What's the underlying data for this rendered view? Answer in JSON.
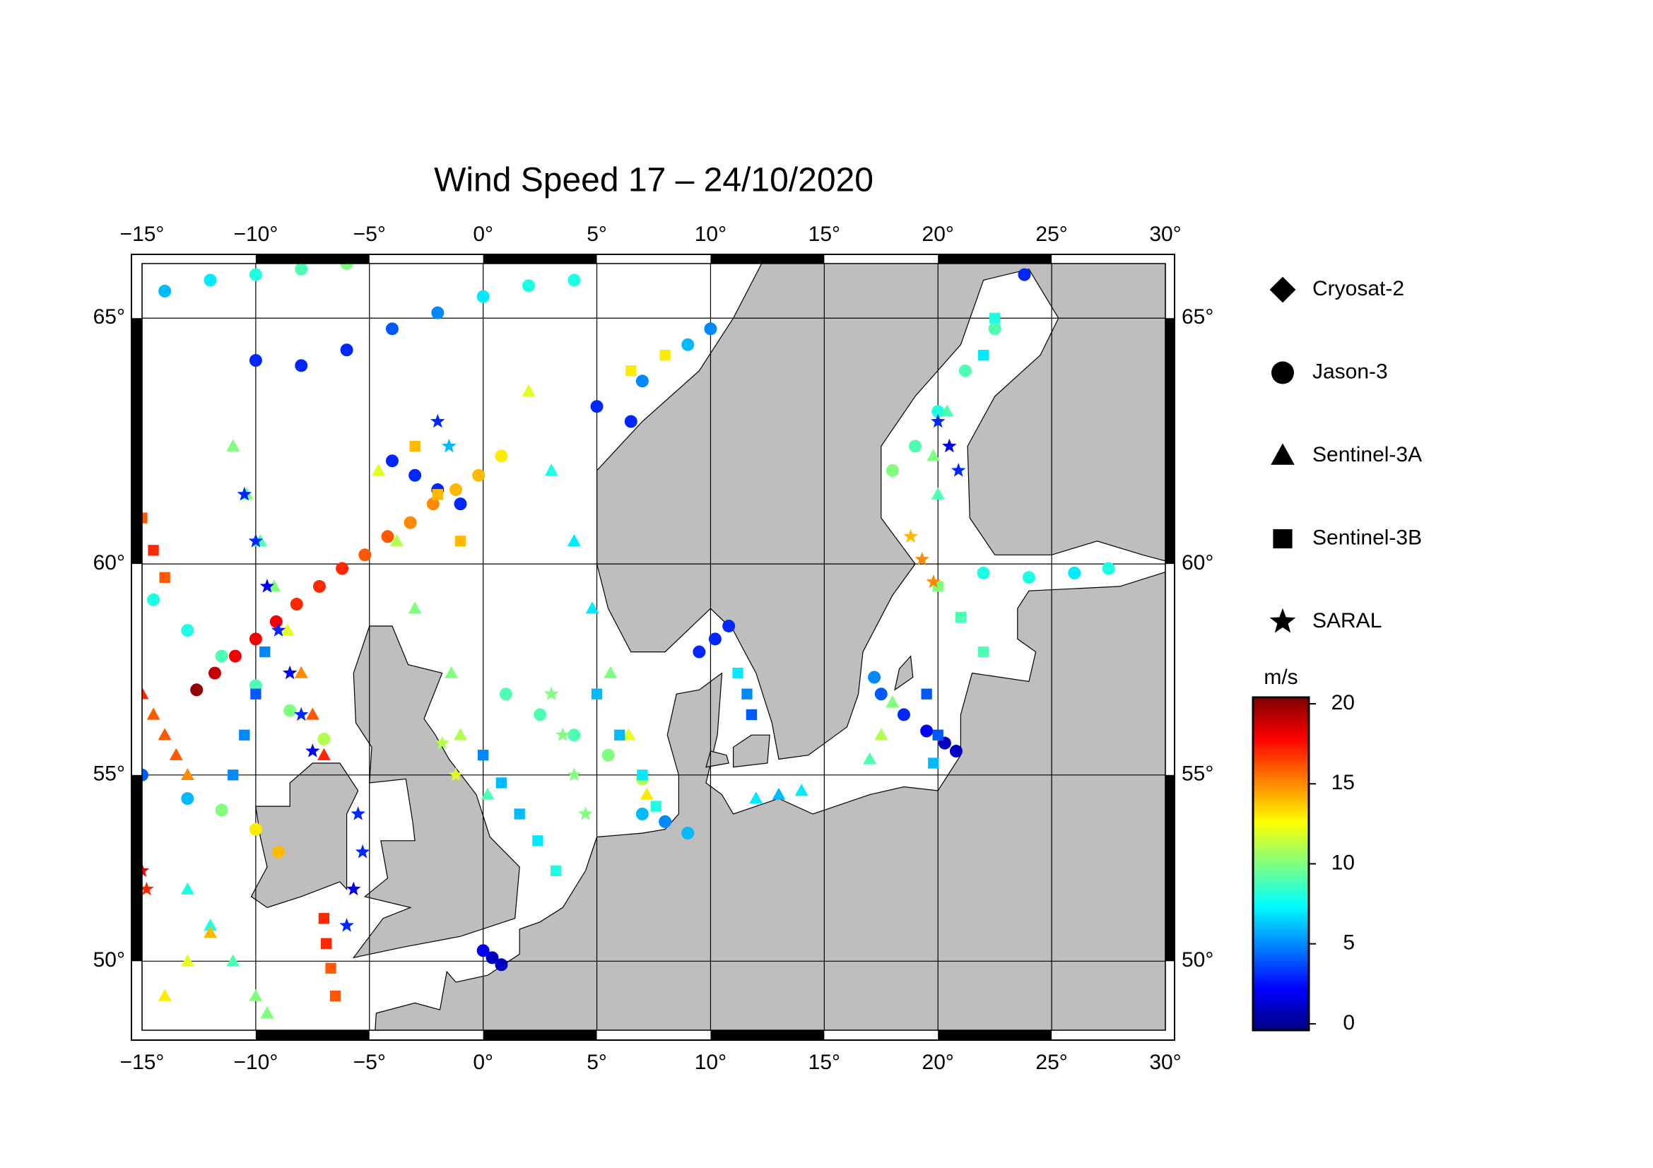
{
  "chart_data": {
    "type": "map-scatter",
    "title": "Wind Speed 17 – 24/10/2020",
    "projection": "mercator",
    "xlim": [
      -15,
      30
    ],
    "ylim": [
      48.0,
      66.0
    ],
    "xticks": [
      {
        "value": -15,
        "label": "−15°"
      },
      {
        "value": -10,
        "label": "−10°"
      },
      {
        "value": -5,
        "label": "−5°"
      },
      {
        "value": 0,
        "label": "0°"
      },
      {
        "value": 5,
        "label": "5°"
      },
      {
        "value": 10,
        "label": "10°"
      },
      {
        "value": 15,
        "label": "15°"
      },
      {
        "value": 20,
        "label": "20°"
      },
      {
        "value": 25,
        "label": "25°"
      },
      {
        "value": 30,
        "label": "30°"
      }
    ],
    "yticks": [
      {
        "value": 50,
        "label": "50°"
      },
      {
        "value": 55,
        "label": "55°"
      },
      {
        "value": 60,
        "label": "60°"
      },
      {
        "value": 65,
        "label": "65°"
      }
    ],
    "grid": true,
    "colormap": "jet",
    "colorbar": {
      "label": "m/s",
      "lim": [
        -0.4,
        20.4
      ],
      "ticks": [
        0,
        5,
        10,
        15,
        20
      ]
    },
    "series": [
      {
        "name": "Cryosat-2",
        "marker": "diamond",
        "x": [],
        "y": [],
        "values": []
      },
      {
        "name": "Jason-3",
        "marker": "circle",
        "x": [
          -12.6,
          -11.8,
          -10.9,
          -10,
          -9.1,
          -8.2,
          -7.2,
          -6.2,
          -5.2,
          -4.2,
          -3.2,
          -2.2,
          -1.2,
          -0.2,
          0.8,
          -4,
          -3,
          -2,
          -1,
          -14,
          -12,
          -10,
          -8,
          -6,
          -10,
          -8,
          -6,
          -4,
          -2,
          0,
          2,
          4,
          5,
          6.5,
          7,
          9,
          10,
          -14.5,
          -13,
          -11.5,
          -10,
          -8.5,
          -7,
          -15,
          -13,
          -11.5,
          -10,
          -9,
          1,
          2.5,
          4,
          5.5,
          7,
          7,
          8,
          9,
          0,
          0.4,
          0.8,
          9.5,
          10.2,
          10.8,
          17.2,
          17.5,
          18.5,
          19.5,
          20.3,
          20.8,
          18,
          19,
          20,
          21.2,
          22.5,
          23.8,
          22,
          24,
          26,
          27.5
        ],
        "y": [
          57.1,
          57.5,
          57.9,
          58.3,
          58.7,
          59.1,
          59.5,
          59.9,
          60.2,
          60.6,
          60.9,
          61.3,
          61.6,
          61.9,
          62.3,
          62.2,
          61.9,
          61.6,
          61.3,
          65.5,
          65.7,
          65.8,
          65.9,
          66,
          64.2,
          64.1,
          64.4,
          64.8,
          65.1,
          65.4,
          65.6,
          65.7,
          63.3,
          63,
          63.8,
          64.5,
          64.8,
          59.2,
          58.5,
          57.9,
          57.2,
          56.6,
          55.9,
          55,
          54.4,
          54.1,
          53.6,
          53,
          57,
          56.5,
          56,
          55.5,
          54.9,
          54,
          53.8,
          53.5,
          50.3,
          50.1,
          49.9,
          58,
          58.3,
          58.6,
          57.4,
          57,
          56.5,
          56.1,
          55.8,
          55.6,
          62,
          62.5,
          63.2,
          64,
          64.8,
          65.8,
          59.8,
          59.7,
          59.8,
          59.9
        ],
        "values": [
          20,
          19,
          18,
          18,
          18,
          17,
          17,
          17,
          16,
          16,
          15,
          15,
          14,
          14,
          13,
          3,
          3,
          3,
          3,
          6,
          7,
          8,
          9,
          10,
          3,
          3,
          3,
          4,
          5,
          7,
          8,
          8,
          3,
          3,
          5,
          6,
          5,
          8,
          8,
          9,
          9,
          10,
          11,
          4,
          6,
          10,
          13,
          14,
          9,
          9,
          9,
          10,
          11,
          6,
          5,
          6,
          2,
          1,
          1,
          3,
          3,
          3,
          5,
          4,
          3,
          2,
          1,
          1,
          10,
          9,
          8,
          9,
          9,
          3,
          8,
          8,
          7,
          8
        ]
      },
      {
        "name": "Sentinel-3A",
        "marker": "triangle",
        "x": [
          -15,
          -14.5,
          -14,
          -13.5,
          -13,
          -11,
          -10.4,
          -9.8,
          -9.2,
          -8.6,
          -8,
          -7.5,
          -7,
          -4.6,
          -3.8,
          -3,
          -1.4,
          -1,
          0.2,
          2,
          3,
          4,
          4.8,
          5.6,
          6.4,
          7.2,
          -13,
          -12,
          -11,
          -10,
          -9.5,
          -14,
          -13,
          -12,
          17,
          17.5,
          18,
          20,
          19.8,
          20.4,
          12,
          13,
          14
        ],
        "y": [
          57,
          56.5,
          56,
          55.5,
          55,
          62.5,
          61.5,
          60.5,
          59.5,
          58.5,
          57.5,
          56.5,
          55.5,
          62,
          60.5,
          59,
          57.5,
          56,
          54.5,
          63.6,
          62,
          60.5,
          59,
          57.5,
          56,
          54.5,
          52,
          51,
          50,
          49,
          48.5,
          49,
          50,
          50.8,
          55.4,
          56,
          56.8,
          61.5,
          62.3,
          63.2,
          54.4,
          54.5,
          54.6
        ],
        "values": [
          17,
          16,
          16,
          16,
          15,
          10,
          10,
          9,
          10,
          12,
          15,
          16,
          17,
          12,
          11,
          10,
          10,
          11,
          9,
          12,
          8,
          7,
          7,
          10,
          12,
          13,
          8,
          8,
          9,
          10,
          10,
          13,
          12,
          14,
          9,
          11,
          10,
          9,
          10,
          9,
          7,
          6,
          7
        ]
      },
      {
        "name": "Sentinel-3B",
        "marker": "square",
        "x": [
          -11,
          -10.5,
          -10,
          -9.6,
          -7,
          -6.9,
          -6.7,
          -6.5,
          0,
          0.8,
          1.6,
          2.4,
          3.2,
          -1,
          -2,
          -3,
          5,
          6,
          7,
          7.6,
          6.5,
          8,
          11.2,
          11.6,
          11.8,
          20,
          21,
          22,
          19.5,
          20,
          19.8,
          22.5,
          22,
          -15,
          -14.5,
          -14
        ],
        "y": [
          55,
          56,
          57,
          58,
          51.2,
          50.5,
          49.8,
          49,
          55.5,
          54.8,
          54,
          53.3,
          52.5,
          60.5,
          61.5,
          62.5,
          57,
          56,
          55,
          54.2,
          64,
          64.3,
          57.5,
          57,
          56.5,
          59.5,
          58.8,
          58,
          57,
          56,
          55.3,
          65,
          64.3,
          61,
          60.3,
          59.7
        ],
        "values": [
          5,
          5,
          4,
          5,
          17,
          17,
          16,
          16,
          5,
          6,
          6,
          7,
          8,
          14,
          14,
          14,
          6,
          6,
          7,
          8,
          13,
          13,
          7,
          5,
          4,
          10,
          9,
          9,
          4,
          4,
          6,
          8,
          7,
          16,
          17,
          16
        ]
      },
      {
        "name": "SARAL",
        "marker": "star",
        "x": [
          -10.5,
          -10,
          -9.5,
          -9,
          -8.5,
          -8,
          -7.5,
          -5.5,
          -5.3,
          -5.7,
          -6,
          -2,
          -1.5,
          3,
          3.5,
          4,
          4.5,
          -15,
          -14.8,
          18.8,
          19.3,
          19.8,
          20,
          20.5,
          20.9,
          -1.8,
          -1.2
        ],
        "y": [
          61.5,
          60.5,
          59.5,
          58.5,
          57.5,
          56.5,
          55.6,
          54,
          53,
          52,
          51,
          63,
          62.5,
          57,
          56,
          55,
          54,
          52.5,
          52,
          60.6,
          60.1,
          59.6,
          63,
          62.5,
          62,
          55.8,
          55
        ],
        "values": [
          3,
          3,
          2,
          3,
          2,
          3,
          2,
          3,
          3,
          2,
          3,
          3,
          6,
          10,
          10,
          10,
          10,
          18,
          17,
          14,
          15,
          15,
          3,
          2,
          3,
          11,
          12
        ]
      }
    ]
  }
}
